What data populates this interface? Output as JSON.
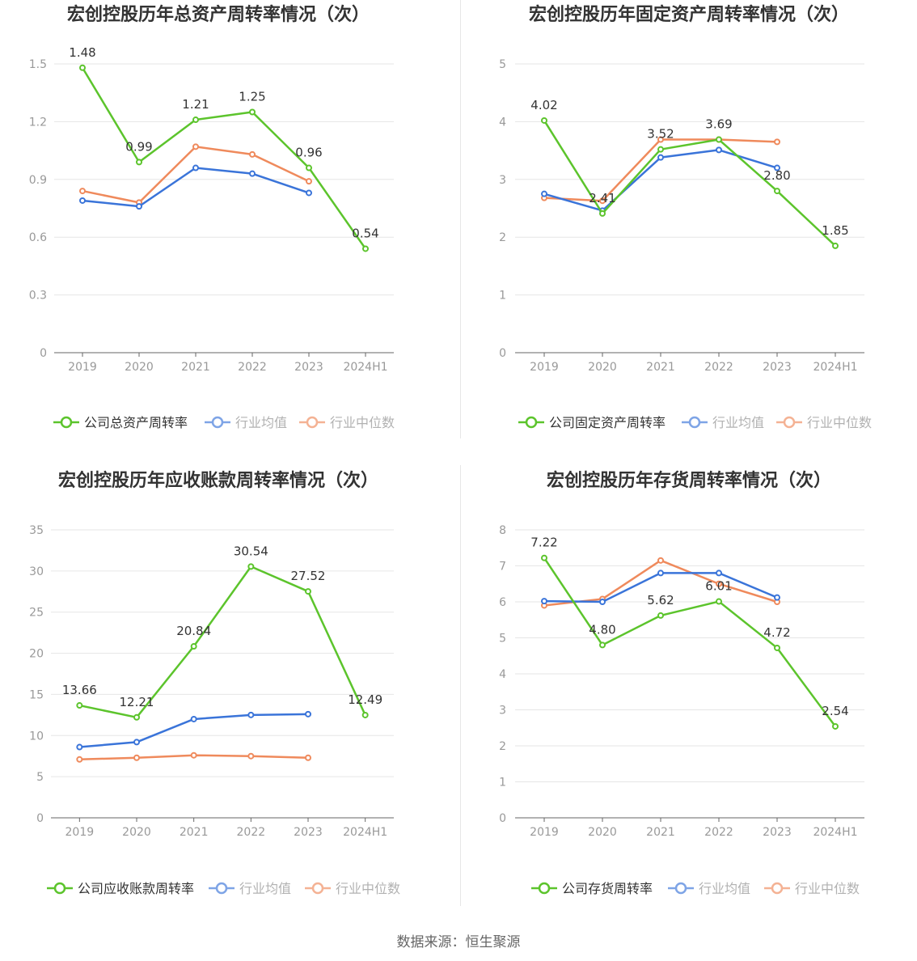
{
  "footer": "数据来源：恒生聚源",
  "colors": {
    "company": "#5cc42c",
    "avg": "#3a74d9",
    "median": "#ef8a5c",
    "grid": "#e6e6e6",
    "axis": "#999999"
  },
  "chart_data": [
    {
      "type": "line",
      "title": "宏创控股历年总资产周转率情况（次）",
      "categories": [
        "2019",
        "2020",
        "2021",
        "2022",
        "2023",
        "2024H1"
      ],
      "ylim": [
        0,
        1.5
      ],
      "yticks": [
        "0",
        "0.3",
        "0.6",
        "0.9",
        "1.2",
        "1.5"
      ],
      "series": [
        {
          "name": "公司总资产周转率",
          "values": [
            1.48,
            0.99,
            1.21,
            1.25,
            0.96,
            0.54
          ],
          "labels": [
            "1.48",
            "0.99",
            "1.21",
            "1.25",
            "0.96",
            "0.54"
          ]
        },
        {
          "name": "行业均值",
          "values": [
            0.79,
            0.76,
            0.96,
            0.93,
            0.83,
            null
          ]
        },
        {
          "name": "行业中位数",
          "values": [
            0.84,
            0.78,
            1.07,
            1.03,
            0.89,
            null
          ]
        }
      ]
    },
    {
      "type": "line",
      "title": "宏创控股历年固定资产周转率情况（次）",
      "categories": [
        "2019",
        "2020",
        "2021",
        "2022",
        "2023",
        "2024H1"
      ],
      "ylim": [
        0,
        5
      ],
      "yticks": [
        "0",
        "1",
        "2",
        "3",
        "4",
        "5"
      ],
      "series": [
        {
          "name": "公司固定资产周转率",
          "values": [
            4.02,
            2.41,
            3.52,
            3.69,
            2.8,
            1.85
          ],
          "labels": [
            "4.02",
            "2.41",
            "3.52",
            "3.69",
            "2.80",
            "1.85"
          ]
        },
        {
          "name": "行业均值",
          "values": [
            2.75,
            2.46,
            3.38,
            3.51,
            3.2,
            null
          ]
        },
        {
          "name": "行业中位数",
          "values": [
            2.68,
            2.63,
            3.69,
            3.69,
            3.65,
            null
          ]
        }
      ]
    },
    {
      "type": "line",
      "title": "宏创控股历年应收账款周转率情况（次）",
      "categories": [
        "2019",
        "2020",
        "2021",
        "2022",
        "2023",
        "2024H1"
      ],
      "ylim": [
        0,
        35
      ],
      "yticks": [
        "0",
        "5",
        "10",
        "15",
        "20",
        "25",
        "30",
        "35"
      ],
      "series": [
        {
          "name": "公司应收账款周转率",
          "values": [
            13.66,
            12.21,
            20.84,
            30.54,
            27.52,
            12.49
          ],
          "labels": [
            "13.66",
            "12.21",
            "20.84",
            "30.54",
            "27.52",
            "12.49"
          ]
        },
        {
          "name": "行业均值",
          "values": [
            8.6,
            9.2,
            12.0,
            12.5,
            12.6,
            null
          ]
        },
        {
          "name": "行业中位数",
          "values": [
            7.1,
            7.3,
            7.6,
            7.5,
            7.3,
            null
          ]
        }
      ]
    },
    {
      "type": "line",
      "title": "宏创控股历年存货周转率情况（次）",
      "categories": [
        "2019",
        "2020",
        "2021",
        "2022",
        "2023",
        "2024H1"
      ],
      "ylim": [
        0,
        8
      ],
      "yticks": [
        "0",
        "1",
        "2",
        "3",
        "4",
        "5",
        "6",
        "7",
        "8"
      ],
      "series": [
        {
          "name": "公司存货周转率",
          "values": [
            7.22,
            4.8,
            5.62,
            6.01,
            4.72,
            2.54
          ],
          "labels": [
            "7.22",
            "4.80",
            "5.62",
            "6.01",
            "4.72",
            "2.54"
          ]
        },
        {
          "name": "行业均值",
          "values": [
            6.02,
            6.0,
            6.8,
            6.8,
            6.12,
            null
          ]
        },
        {
          "name": "行业中位数",
          "values": [
            5.9,
            6.08,
            7.15,
            6.5,
            6.0,
            null
          ]
        }
      ]
    }
  ]
}
